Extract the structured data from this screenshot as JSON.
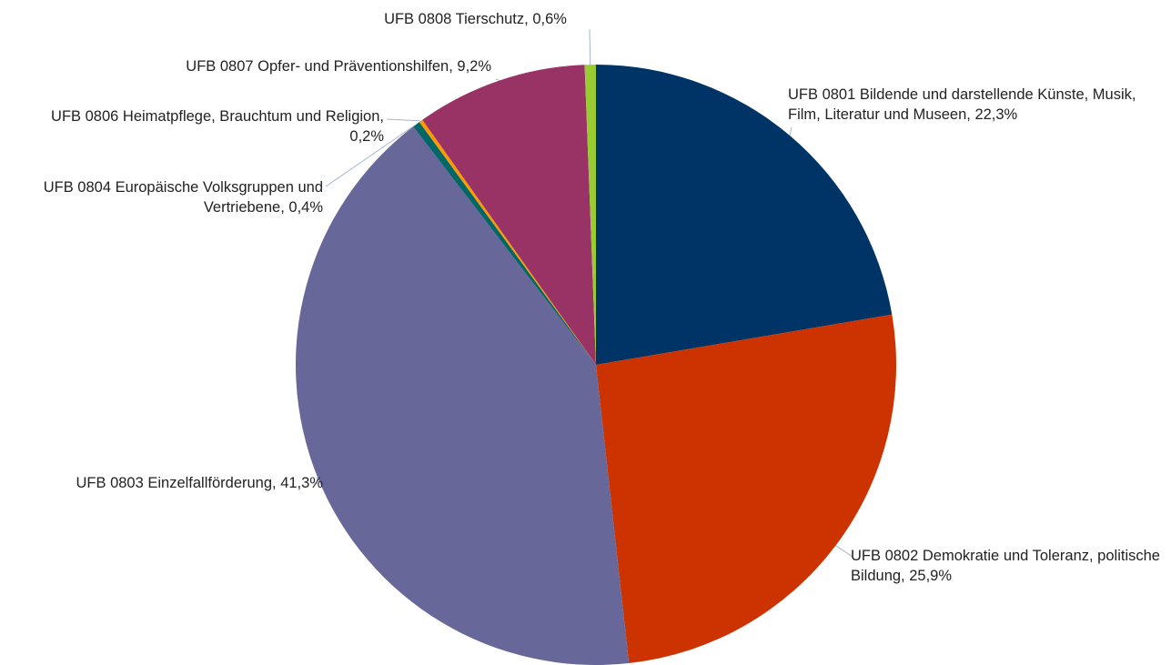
{
  "chart_data": {
    "type": "pie",
    "categories": [
      "UFB 0801 Bildende und darstellende Künste, Musik, Film, Literatur und Museen,",
      "UFB 0802 Demokratie und Toleranz, politische Bildung,",
      "UFB 0803 Einzelfallförderung,",
      "UFB 0804 Europäische Volksgruppen und Vertriebene,",
      "UFB 0806 Heimatpflege, Brauchtum und Religion,",
      "UFB 0807 Opfer- und Präventionshilfen,",
      "UFB 0808 Tierschutz,"
    ],
    "values": [
      22.3,
      25.9,
      41.3,
      0.4,
      0.2,
      9.2,
      0.6
    ],
    "value_labels": [
      "22,3%",
      "25,9%",
      "41,3%",
      "0,4%",
      "0,2%",
      "9,2%",
      "0,6%"
    ],
    "colors": [
      "#003466",
      "#cc3300",
      "#67679a",
      "#006666",
      "#ff9900",
      "#993366",
      "#99cc33"
    ]
  }
}
